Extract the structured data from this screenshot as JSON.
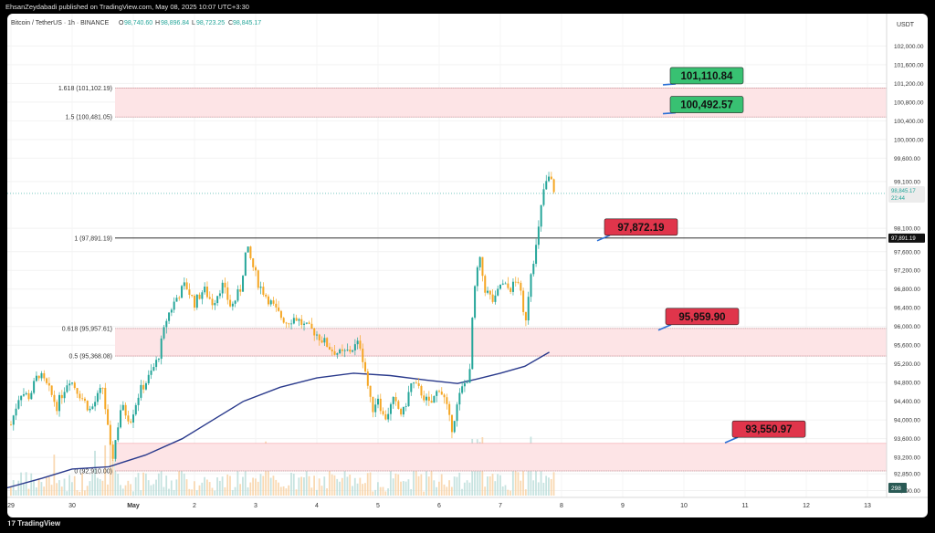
{
  "publisher_line": "EhsanZeydabadi published on TradingView.com, May 08, 2025 10:07 UTC+3:30",
  "brand": "TradingView",
  "symbol": {
    "title": "Bitcoin / TetherUS · 1h · BINANCE",
    "open_label": "O",
    "open": "98,740.60",
    "high_label": "H",
    "high": "98,896.84",
    "low_label": "L",
    "low": "98,723.25",
    "close_label": "C",
    "close": "98,845.17"
  },
  "colors": {
    "up": "#26a69a",
    "down": "#ef5350",
    "candle_down": "#f5a623",
    "ma": "#2a3a8c",
    "zone_fill": "#fde4e6",
    "zone_border": "#f4a5ab",
    "label_green": "#38c172",
    "label_red": "#e0354b"
  },
  "chart_data": {
    "type": "candlestick",
    "currency": "USDT",
    "ylim": [
      92500,
      102300
    ],
    "y_ticks": [
      "102,000.00",
      "101,600.00",
      "101,200.00",
      "100,800.00",
      "100,400.00",
      "100,000.00",
      "99,600.00",
      "99,100.00",
      "98,100.00",
      "97,600.00",
      "97,200.00",
      "96,800.00",
      "96,400.00",
      "96,000.00",
      "95,600.00",
      "95,200.00",
      "94,800.00",
      "94,400.00",
      "94,000.00",
      "93,600.00",
      "93,200.00",
      "92,850.00",
      "92,490.00"
    ],
    "y_tick_values": [
      102000,
      101600,
      101200,
      100800,
      100400,
      100000,
      99600,
      99100,
      98100,
      97600,
      97200,
      96800,
      96400,
      96000,
      95600,
      95200,
      94800,
      94400,
      94000,
      93600,
      93200,
      92850,
      92490
    ],
    "x_ticks": [
      "29",
      "30",
      "May",
      "2",
      "3",
      "4",
      "5",
      "6",
      "7",
      "8",
      "9",
      "10",
      "11",
      "12",
      "13"
    ],
    "x_tick_day_index": [
      0,
      1,
      2,
      3,
      4,
      5,
      6,
      7,
      8,
      9,
      10,
      11,
      12,
      13,
      14
    ],
    "last_price": "98,845.17",
    "last_price_value": 98845.17,
    "countdown": "22:44",
    "marked_level": "97,891.19",
    "marked_level_value": 97891.19,
    "volume_badge": "298",
    "fib_levels": [
      {
        "label": "1.618 (101,102.19)",
        "value": 101102.19
      },
      {
        "label": "1.5 (100,481.05)",
        "value": 100481.05
      },
      {
        "label": "1 (97,891.19)",
        "value": 97891.19
      },
      {
        "label": "0.618 (95,957.61)",
        "value": 95957.61
      },
      {
        "label": "0.5 (95,368.08)",
        "value": 95368.08
      },
      {
        "label": "0 (92,910.00)",
        "value": 92910.0
      }
    ],
    "zones": [
      {
        "from": 100481.05,
        "to": 101102.19
      },
      {
        "from": 95368.08,
        "to": 95957.61
      },
      {
        "from": 92910.0,
        "to": 93500
      }
    ],
    "callouts": [
      {
        "text": "101,110.84",
        "color": "green",
        "price": 101110.84
      },
      {
        "text": "100,492.57",
        "color": "green",
        "price": 100492.57
      },
      {
        "text": "97,872.19",
        "color": "red",
        "price": 97872.19
      },
      {
        "text": "95,959.90",
        "color": "red",
        "price": 95959.9
      },
      {
        "text": "93,550.97",
        "color": "red",
        "price": 93550.97
      }
    ],
    "price_path": [
      [
        0.0,
        93900
      ],
      [
        0.15,
        94600
      ],
      [
        0.3,
        94500
      ],
      [
        0.45,
        95000
      ],
      [
        0.6,
        94700
      ],
      [
        0.75,
        94300
      ],
      [
        0.95,
        94900
      ],
      [
        1.1,
        94600
      ],
      [
        1.3,
        94200
      ],
      [
        1.5,
        94700
      ],
      [
        1.65,
        93100
      ],
      [
        1.8,
        94300
      ],
      [
        1.95,
        94000
      ],
      [
        2.1,
        94600
      ],
      [
        2.25,
        94900
      ],
      [
        2.4,
        95300
      ],
      [
        2.55,
        96200
      ],
      [
        2.7,
        96600
      ],
      [
        2.85,
        96900
      ],
      [
        3.0,
        96500
      ],
      [
        3.15,
        96800
      ],
      [
        3.3,
        96500
      ],
      [
        3.45,
        96900
      ],
      [
        3.6,
        96400
      ],
      [
        3.75,
        96800
      ],
      [
        3.85,
        97700
      ],
      [
        3.95,
        97300
      ],
      [
        4.05,
        96900
      ],
      [
        4.2,
        96600
      ],
      [
        4.35,
        96300
      ],
      [
        4.5,
        96100
      ],
      [
        4.65,
        96200
      ],
      [
        4.8,
        96000
      ],
      [
        4.95,
        95900
      ],
      [
        5.1,
        95700
      ],
      [
        5.25,
        95500
      ],
      [
        5.4,
        95400
      ],
      [
        5.55,
        95500
      ],
      [
        5.7,
        95650
      ],
      [
        5.8,
        95000
      ],
      [
        5.9,
        94200
      ],
      [
        6.0,
        94500
      ],
      [
        6.1,
        94000
      ],
      [
        6.25,
        94400
      ],
      [
        6.4,
        94100
      ],
      [
        6.55,
        94800
      ],
      [
        6.7,
        94600
      ],
      [
        6.85,
        94300
      ],
      [
        7.0,
        94700
      ],
      [
        7.1,
        94400
      ],
      [
        7.2,
        93800
      ],
      [
        7.35,
        94600
      ],
      [
        7.5,
        95000
      ],
      [
        7.55,
        96400
      ],
      [
        7.65,
        97500
      ],
      [
        7.75,
        96800
      ],
      [
        7.9,
        96500
      ],
      [
        8.0,
        96900
      ],
      [
        8.15,
        96800
      ],
      [
        8.3,
        97000
      ],
      [
        8.4,
        96000
      ],
      [
        8.5,
        97200
      ],
      [
        8.6,
        97800
      ],
      [
        8.7,
        98900
      ],
      [
        8.8,
        99200
      ],
      [
        8.9,
        98850
      ]
    ],
    "ma_path": [
      [
        -0.2,
        92500
      ],
      [
        0.5,
        92750
      ],
      [
        1.0,
        92950
      ],
      [
        1.6,
        93000
      ],
      [
        2.2,
        93250
      ],
      [
        2.8,
        93600
      ],
      [
        3.3,
        94000
      ],
      [
        3.8,
        94400
      ],
      [
        4.4,
        94700
      ],
      [
        5.0,
        94900
      ],
      [
        5.6,
        95000
      ],
      [
        6.2,
        94950
      ],
      [
        6.8,
        94850
      ],
      [
        7.3,
        94780
      ],
      [
        7.6,
        94870
      ],
      [
        8.0,
        95000
      ],
      [
        8.4,
        95150
      ],
      [
        8.8,
        95450
      ]
    ]
  }
}
